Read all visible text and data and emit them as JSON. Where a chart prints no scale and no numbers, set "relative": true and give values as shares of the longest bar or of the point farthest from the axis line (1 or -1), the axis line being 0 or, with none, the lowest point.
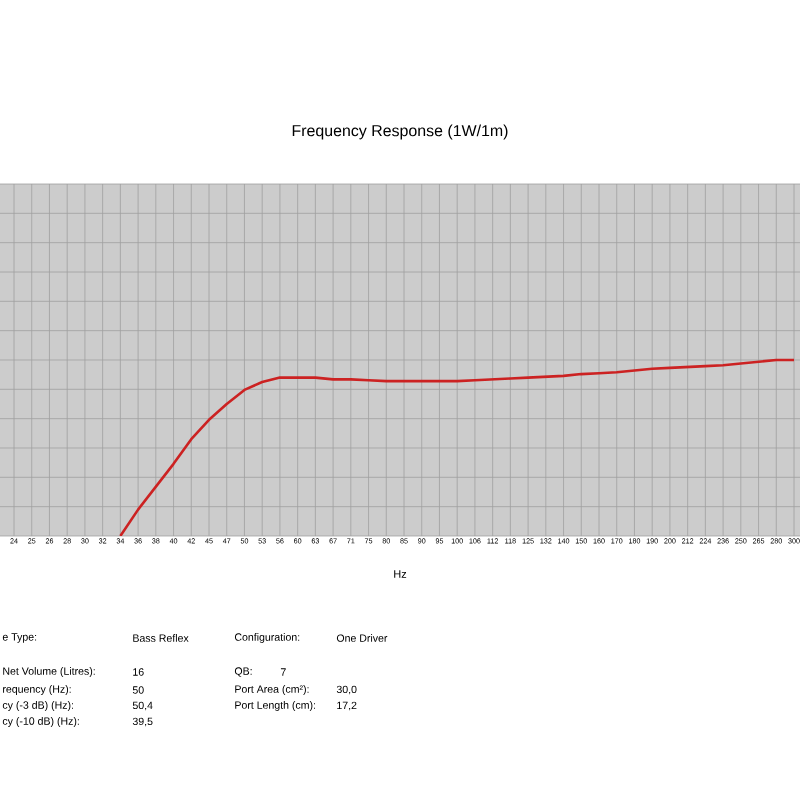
{
  "chart_data": {
    "type": "line",
    "title": "Frequency Response (1W/1m)",
    "xlabel": "Hz",
    "relative": true,
    "grid": true,
    "categories": [
      "24",
      "25",
      "26",
      "28",
      "30",
      "32",
      "34",
      "36",
      "38",
      "40",
      "42",
      "45",
      "47",
      "50",
      "53",
      "56",
      "60",
      "63",
      "67",
      "71",
      "75",
      "80",
      "85",
      "90",
      "95",
      "100",
      "106",
      "112",
      "118",
      "125",
      "132",
      "140",
      "150",
      "160",
      "170",
      "180",
      "190",
      "200",
      "212",
      "224",
      "236",
      "250",
      "265",
      "280",
      "300"
    ],
    "series": [
      {
        "color": "#cc2222",
        "values": [
          null,
          null,
          null,
          null,
          null,
          null,
          0,
          0.15,
          0.28,
          0.41,
          0.55,
          0.66,
          0.75,
          0.83,
          0.875,
          0.9,
          0.9,
          0.9,
          0.89,
          0.89,
          0.885,
          0.88,
          0.88,
          0.88,
          0.88,
          0.88,
          0.885,
          0.89,
          0.895,
          0.9,
          0.905,
          0.91,
          0.92,
          0.925,
          0.93,
          0.94,
          0.95,
          0.955,
          0.96,
          0.965,
          0.97,
          0.98,
          0.99,
          1.0,
          1.0
        ]
      }
    ],
    "annotations": [
      "e Type:",
      "Bass Reflex",
      "Configuration:",
      "One Driver",
      "Net Volume (Litres):",
      "16",
      "QB:",
      "7",
      "requency (Hz):",
      "50",
      "Port Area (cm²):",
      "30,0",
      "cy (-3 dB) (Hz):",
      "50,4",
      "Port Length (cm):",
      "17,2",
      "cy (-10 dB) (Hz):",
      "39,5"
    ]
  }
}
